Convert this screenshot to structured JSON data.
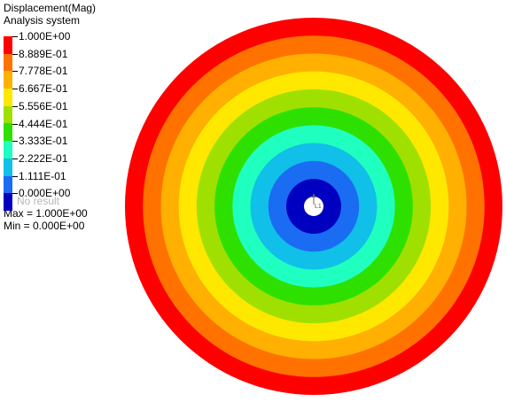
{
  "legend": {
    "title": "Displacement(Mag)",
    "subtitle": "Analysis system",
    "levels": [
      "1.000E+00",
      "8.889E-01",
      "7.778E-01",
      "6.667E-01",
      "5.556E-01",
      "4.444E-01",
      "3.333E-01",
      "2.222E-01",
      "1.111E-01",
      "0.000E+00"
    ],
    "colors": [
      "#ff0000",
      "#ff7200",
      "#ffb000",
      "#ffe800",
      "#9fe000",
      "#2ee000",
      "#1fffc0",
      "#10c0e8",
      "#1a6cf2",
      "#0000c0"
    ],
    "no_result": "No result",
    "max": "Max = 1.000E+00",
    "min": "Min = 0.000E+00"
  },
  "contour": {
    "band_colors": [
      "#ff0000",
      "#ff7200",
      "#ffb000",
      "#ffe800",
      "#9fe000",
      "#2ee000",
      "#1fffc0",
      "#10c0e8",
      "#1a6cf2",
      "#0000c0"
    ],
    "center_label": "L1"
  }
}
